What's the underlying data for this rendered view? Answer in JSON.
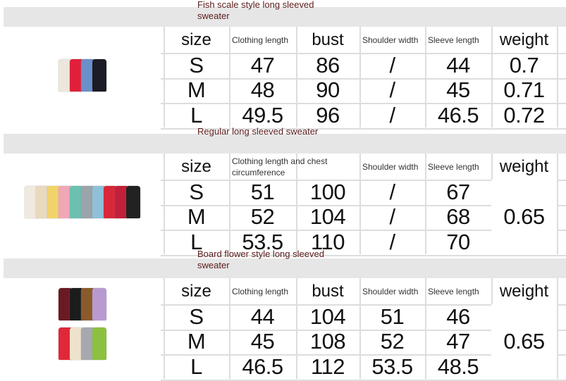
{
  "sections": [
    {
      "title": "Fish scale style long sleeved sweater",
      "headers": [
        "size",
        "Clothing length",
        "bust",
        "Shoulder width",
        "Sleeve length",
        "weight"
      ],
      "rows": [
        [
          "S",
          "47",
          "86",
          "/",
          "44",
          "0.7"
        ],
        [
          "M",
          "48",
          "90",
          "/",
          "45",
          "0.71"
        ],
        [
          "L",
          "49.5",
          "96",
          "/",
          "46.5",
          "0.72"
        ]
      ],
      "colors": [
        [
          "#ece6dc",
          "#e0203a",
          "#6b8fc8",
          "#1c1c26"
        ]
      ]
    },
    {
      "title": "Regular long sleeved sweater",
      "headers": [
        "size",
        "Clothing length and chest circumference",
        "Shoulder width",
        "Sleeve length",
        "weight"
      ],
      "rows": [
        [
          "S",
          "51",
          "100",
          "/",
          "67"
        ],
        [
          "M",
          "52",
          "104",
          "/",
          "68"
        ],
        [
          "L",
          "53.5",
          "110",
          "/",
          "70"
        ]
      ],
      "weight": "0.65",
      "colors": [
        [
          "#efe9df",
          "#e8d9bf",
          "#f2d36b",
          "#f0a7b8",
          "#6cc0b0",
          "#9aa4aa",
          "#8fc0d8",
          "#d8283a",
          "#c0203a",
          "#222"
        ]
      ]
    },
    {
      "title": "Board flower style long sleeved sweater",
      "headers": [
        "size",
        "Clothing length",
        "bust",
        "Shoulder width",
        "Sleeve length",
        "weight"
      ],
      "rows": [
        [
          "S",
          "44",
          "104",
          "51",
          "46"
        ],
        [
          "M",
          "45",
          "108",
          "52",
          "47"
        ],
        [
          "L",
          "46.5",
          "112",
          "53.5",
          "48.5"
        ]
      ],
      "weight": "0.65",
      "colors": [
        [
          "#6a1a22",
          "#1c1c1c",
          "#8a5a2a",
          "#b89ad0"
        ],
        [
          "#e02838",
          "#efe2cc",
          "#a8a8b0",
          "#8cc040"
        ]
      ]
    }
  ]
}
